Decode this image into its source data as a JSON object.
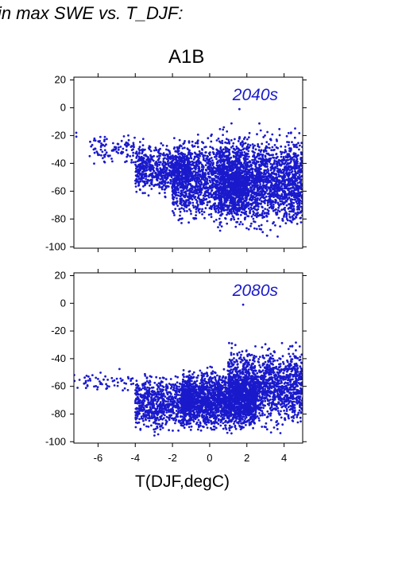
{
  "figure": {
    "title": "in max SWE vs. T_DJF:",
    "scenario": "A1B",
    "xlabel": "T(DJF,degC)"
  },
  "colors": {
    "points": "#1a1acc",
    "label": "#1a1acc",
    "axis": "#000000"
  },
  "chart_data": [
    {
      "type": "scatter",
      "title": "2040s",
      "xlabel": "T(DJF,degC)",
      "ylabel": "",
      "xlim": [
        -7.3,
        5.0
      ],
      "ylim": [
        -101,
        22
      ],
      "xticks": [
        -6,
        -4,
        -2,
        0,
        2,
        4
      ],
      "yticks": [
        20,
        0,
        -20,
        -40,
        -60,
        -80,
        -100
      ],
      "approx_points": 4500,
      "clusters": [
        {
          "x": -7.2,
          "y": -20,
          "n": 2
        },
        {
          "x_range": [
            -6.5,
            -3.5
          ],
          "y_range": [
            -45,
            -15
          ],
          "n": 120
        },
        {
          "x_range": [
            -4,
            -1
          ],
          "y_range": [
            -70,
            -20
          ],
          "n": 700
        },
        {
          "x_range": [
            -2,
            2
          ],
          "y_range": [
            -95,
            -10
          ],
          "n": 1500
        },
        {
          "x_range": [
            0.5,
            5
          ],
          "y_range": [
            -100,
            -5
          ],
          "n": 2100
        }
      ],
      "max_point": {
        "x": 1.6,
        "y": -1
      }
    },
    {
      "type": "scatter",
      "title": "2080s",
      "xlabel": "T(DJF,degC)",
      "ylabel": "",
      "xlim": [
        -7.3,
        5.0
      ],
      "ylim": [
        -101,
        22
      ],
      "xticks": [
        -6,
        -4,
        -2,
        0,
        2,
        4
      ],
      "yticks": [
        20,
        0,
        -20,
        -40,
        -60,
        -80,
        -100
      ],
      "approx_points": 4500,
      "clusters": [
        {
          "x_range": [
            -7.3,
            -4
          ],
          "y_range": [
            -70,
            -45
          ],
          "n": 60
        },
        {
          "x_range": [
            -4,
            -1
          ],
          "y_range": [
            -100,
            -45
          ],
          "n": 800
        },
        {
          "x_range": [
            -1.5,
            2.5
          ],
          "y_range": [
            -100,
            -40
          ],
          "n": 2100
        },
        {
          "x_range": [
            1,
            5
          ],
          "y_range": [
            -100,
            -20
          ],
          "n": 1500
        }
      ],
      "max_point": {
        "x": 1.8,
        "y": -1
      }
    }
  ]
}
